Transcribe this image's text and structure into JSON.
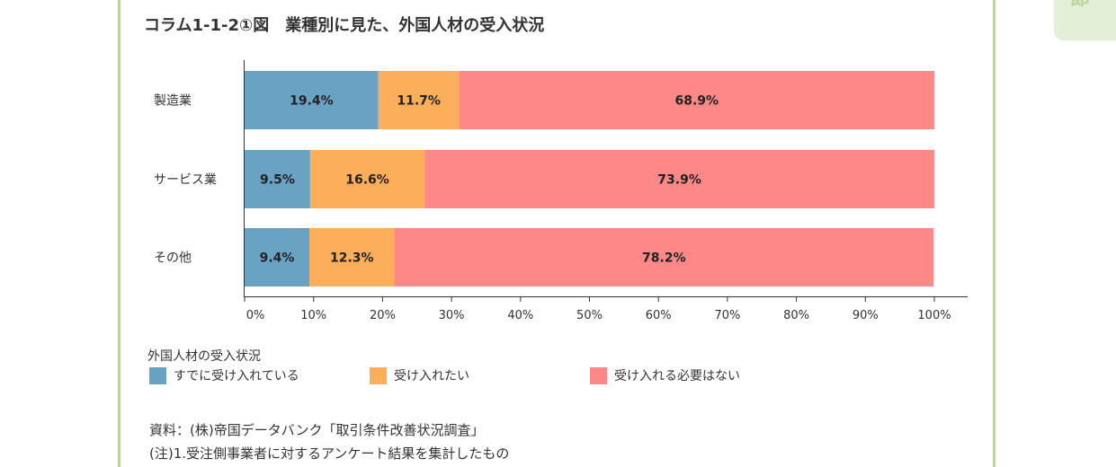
{
  "page": {
    "title": "コラム1-1-2①図　業種別に見た、外国人材の受入状況",
    "side_tab_char": "節",
    "source": "資料：(株)帝国データバンク「取引条件改善状況調査」",
    "note": "(注)1.受注側事業者に対するアンケート結果を集計したもの"
  },
  "legend": {
    "title": "外国人材の受入状況",
    "items": [
      {
        "label": "すでに受け入れている",
        "color": "#6aa2c4"
      },
      {
        "label": "受け入れたい",
        "color": "#fdae5a"
      },
      {
        "label": "受け入れる必要はない",
        "color": "#fe8888"
      }
    ]
  },
  "chart_data": {
    "type": "bar",
    "orientation": "horizontal",
    "stacked": true,
    "title": "コラム1-1-2①図　業種別に見た、外国人材の受入状況",
    "legend_title": "外国人材の受入状況",
    "legend_position": "bottom-left",
    "categories": [
      "製造業",
      "サービス業",
      "その他"
    ],
    "series": [
      {
        "name": "すでに受け入れている",
        "color": "#6aa2c4",
        "values": [
          19.4,
          9.5,
          9.4
        ],
        "labels": [
          "19.4%",
          "9.5%",
          "9.4%"
        ]
      },
      {
        "name": "受け入れたい",
        "color": "#fdae5a",
        "values": [
          11.7,
          16.6,
          12.3
        ],
        "labels": [
          "11.7%",
          "16.6%",
          "12.3%"
        ]
      },
      {
        "name": "受け入れる必要はない",
        "color": "#fe8888",
        "values": [
          68.9,
          73.9,
          78.2
        ],
        "labels": [
          "68.9%",
          "73.9%",
          "78.2%"
        ]
      }
    ],
    "xlim": [
      0,
      100
    ],
    "xticks": [
      "0%",
      "10%",
      "20%",
      "30%",
      "40%",
      "50%",
      "60%",
      "70%",
      "80%",
      "90%",
      "100%"
    ],
    "grid": false
  }
}
